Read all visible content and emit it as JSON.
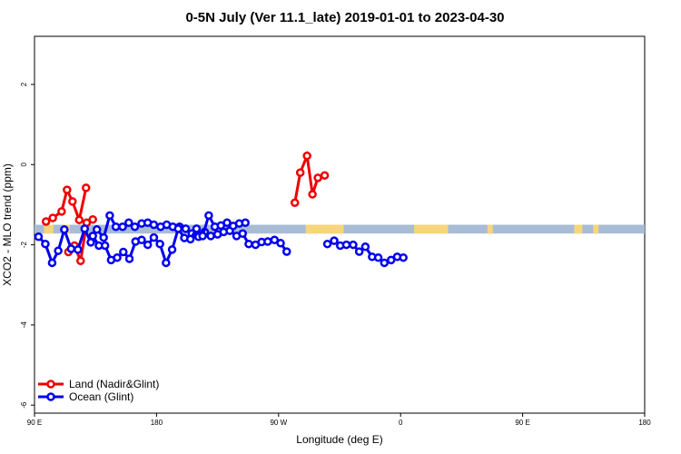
{
  "chart_data": {
    "type": "line",
    "title": "0-5N July (Ver 11.1_late)   2019-01-01 to 2023-04-30",
    "xlabel": "Longitude (deg E)",
    "ylabel": "XCO2 - MLO trend (ppm)",
    "xlim": [
      90,
      450
    ],
    "ylim": [
      -6.2,
      3.2
    ],
    "x_ticks": [
      {
        "value": 90,
        "label": "90 E"
      },
      {
        "value": 180,
        "label": "180"
      },
      {
        "value": 270,
        "label": "90 W"
      },
      {
        "value": 360,
        "label": "0"
      },
      {
        "value": 450,
        "label": "90 E"
      },
      {
        "value": 540,
        "label": "180"
      }
    ],
    "y_ticks": [
      {
        "value": 2,
        "label": "2"
      },
      {
        "value": 0,
        "label": "0"
      },
      {
        "value": -2,
        "label": "-2"
      },
      {
        "value": -4,
        "label": "-4"
      },
      {
        "value": -6,
        "label": "-6"
      }
    ],
    "x_display": {
      "min": 90,
      "max": 540
    },
    "band": {
      "y_top": -1.5,
      "y_bottom": -1.72,
      "ocean_color": "#a9bcd6",
      "land_color": "#f7d57a",
      "land_ranges": [
        [
          97,
          104
        ],
        [
          112,
          116
        ],
        [
          290,
          318
        ],
        [
          370,
          395
        ],
        [
          424,
          428
        ],
        [
          488,
          494
        ],
        [
          502,
          506
        ]
      ]
    },
    "series": [
      {
        "name": "Land (Nadir&Glint)",
        "color": "#ee0000",
        "segments": [
          [
            [
              98.5,
              -1.42
            ],
            [
              103.5,
              -1.33
            ],
            [
              110,
              -1.17
            ],
            [
              114,
              -0.63
            ],
            [
              118,
              -0.92
            ],
            [
              123,
              -1.38
            ],
            [
              128,
              -0.58
            ]
          ],
          [
            [
              282,
              -0.95
            ],
            [
              286,
              -0.2
            ],
            [
              291,
              0.22
            ],
            [
              295,
              -0.74
            ],
            [
              299,
              -0.33
            ],
            [
              304,
              -0.27
            ]
          ],
          [
            [
              115,
              -2.18
            ],
            [
              119.5,
              -2.02
            ],
            [
              124,
              -2.4
            ],
            [
              128.5,
              -1.45
            ],
            [
              133,
              -1.37
            ]
          ]
        ]
      },
      {
        "name": "Ocean (Glint)",
        "color": "#0000ee",
        "segments": [
          [
            [
              93,
              -1.8
            ],
            [
              98,
              -1.98
            ],
            [
              103,
              -2.45
            ],
            [
              107.5,
              -2.15
            ],
            [
              112,
              -1.62
            ],
            [
              117,
              -2.1
            ],
            [
              122,
              -2.12
            ],
            [
              127,
              -1.6
            ],
            [
              131.5,
              -1.94
            ],
            [
              136,
              -1.62
            ],
            [
              141,
              -1.82
            ],
            [
              145.5,
              -1.27
            ],
            [
              150,
              -1.55
            ],
            [
              155,
              -1.55
            ],
            [
              159.5,
              -1.45
            ],
            [
              164,
              -1.55
            ],
            [
              169,
              -1.47
            ],
            [
              173.5,
              -1.45
            ],
            [
              178,
              -1.5
            ],
            [
              183,
              -1.55
            ],
            [
              187.5,
              -1.5
            ],
            [
              192,
              -1.55
            ],
            [
              197,
              -1.55
            ],
            [
              201.5,
              -1.6
            ],
            [
              206,
              -1.72
            ],
            [
              211,
              -1.8
            ],
            [
              215.5,
              -1.68
            ],
            [
              220,
              -1.78
            ],
            [
              225,
              -1.74
            ],
            [
              229.5,
              -1.68
            ],
            [
              234,
              -1.65
            ],
            [
              239,
              -1.78
            ],
            [
              243.5,
              -1.72
            ],
            [
              248,
              -1.98
            ],
            [
              253,
              -2.0
            ],
            [
              257.5,
              -1.93
            ],
            [
              262,
              -1.92
            ],
            [
              267,
              -1.88
            ],
            [
              271.5,
              -1.96
            ],
            [
              276,
              -2.17
            ]
          ],
          [
            [
              306,
              -1.98
            ],
            [
              311,
              -1.9
            ],
            [
              315.5,
              -2.02
            ],
            [
              320,
              -2.0
            ],
            [
              325,
              -2.0
            ],
            [
              329.5,
              -2.17
            ],
            [
              334,
              -2.05
            ],
            [
              339,
              -2.3
            ],
            [
              343.5,
              -2.32
            ],
            [
              348,
              -2.45
            ],
            [
              353,
              -2.38
            ],
            [
              357.5,
              -2.3
            ],
            [
              362,
              -2.32
            ]
          ],
          [
            [
              133,
              -1.78
            ],
            [
              137.5,
              -2.02
            ],
            [
              142,
              -2.02
            ],
            [
              146.5,
              -2.38
            ],
            [
              151,
              -2.32
            ],
            [
              155.5,
              -2.18
            ],
            [
              160,
              -2.35
            ],
            [
              164.5,
              -1.92
            ],
            [
              169,
              -1.88
            ],
            [
              173.5,
              -2.0
            ],
            [
              178,
              -1.82
            ],
            [
              182.5,
              -1.98
            ],
            [
              187,
              -2.45
            ],
            [
              191.5,
              -2.12
            ],
            [
              196,
              -1.6
            ],
            [
              200.5,
              -1.83
            ],
            [
              205,
              -1.86
            ],
            [
              209.5,
              -1.6
            ],
            [
              214,
              -1.78
            ],
            [
              218.5,
              -1.27
            ],
            [
              223,
              -1.55
            ],
            [
              227.5,
              -1.52
            ],
            [
              232,
              -1.45
            ],
            [
              236.5,
              -1.53
            ],
            [
              241,
              -1.47
            ],
            [
              245.5,
              -1.45
            ]
          ]
        ]
      }
    ],
    "legend": {
      "position": "bottom-left",
      "entries": [
        {
          "label": "Land (Nadir&Glint)",
          "color": "#ee0000"
        },
        {
          "label": "Ocean (Glint)",
          "color": "#0000ee"
        }
      ]
    },
    "grid": false
  }
}
